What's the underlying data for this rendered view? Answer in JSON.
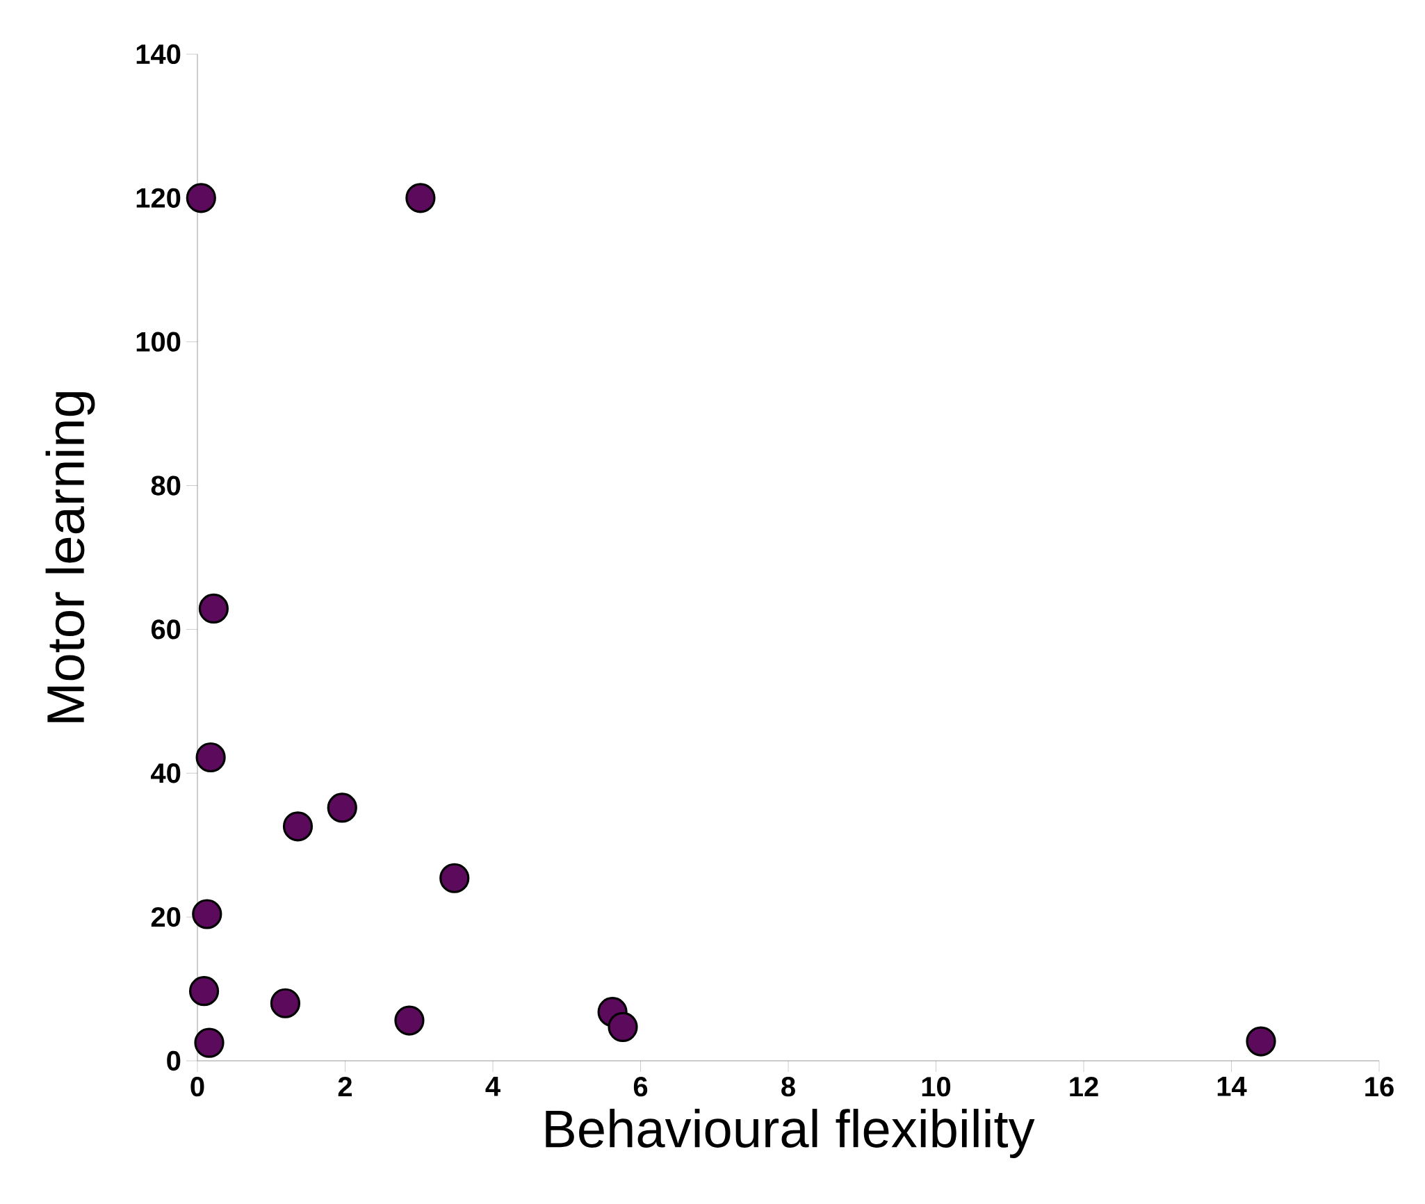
{
  "chart_data": {
    "type": "scatter",
    "xlabel": "Behavioural flexibility",
    "ylabel": "Motor learning",
    "x": [
      0.05,
      3.02,
      0.22,
      0.18,
      1.96,
      1.36,
      3.48,
      0.13,
      0.09,
      1.19,
      0.16,
      2.87,
      5.62,
      5.76,
      14.4
    ],
    "series": [
      {
        "color": "#5c0a5c",
        "values": [
          120,
          120,
          62.9,
          42.2,
          35.2,
          32.6,
          25.4,
          20.4,
          9.7,
          8.0,
          2.5,
          5.6,
          6.8,
          4.7,
          2.7
        ]
      }
    ],
    "marker": "circle",
    "xlim": [
      0,
      16
    ],
    "xticks": [
      0,
      2,
      4,
      6,
      8,
      10,
      12,
      14,
      16
    ],
    "ylim": [
      0,
      140
    ],
    "yticks": [
      0,
      20,
      40,
      60,
      80,
      100,
      120,
      140
    ]
  }
}
